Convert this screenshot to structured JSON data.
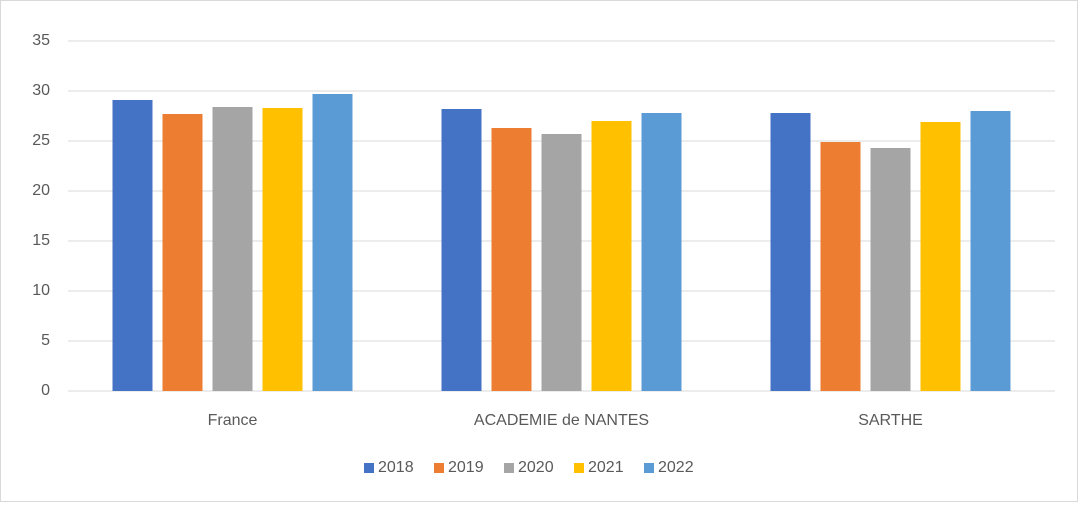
{
  "chart_data": {
    "type": "bar",
    "categories": [
      "France",
      "ACADEMIE de NANTES",
      "SARTHE"
    ],
    "series": [
      {
        "name": "2018",
        "color": "#4472c4",
        "values": [
          29.1,
          28.2,
          27.8
        ]
      },
      {
        "name": "2019",
        "color": "#ed7d31",
        "values": [
          27.7,
          26.3,
          24.9
        ]
      },
      {
        "name": "2020",
        "color": "#a5a5a5",
        "values": [
          28.4,
          25.7,
          24.3
        ]
      },
      {
        "name": "2021",
        "color": "#ffc000",
        "values": [
          28.3,
          27.0,
          26.9
        ]
      },
      {
        "name": "2022",
        "color": "#5b9bd5",
        "values": [
          29.7,
          27.8,
          28.0
        ]
      }
    ],
    "ylim": [
      0,
      35
    ],
    "yticks": [
      0,
      5,
      10,
      15,
      20,
      25,
      30,
      35
    ],
    "grid": true,
    "legend": "bottom"
  }
}
